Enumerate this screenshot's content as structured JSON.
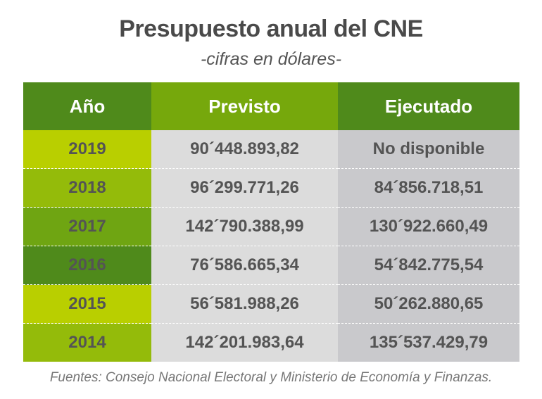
{
  "title": "Presupuesto anual del CNE",
  "subtitle": "-cifras en dólares-",
  "source": "Fuentes: Consejo Nacional Electoral y Ministerio de Economía y Finanzas.",
  "chart_data": {
    "type": "table",
    "title": "Presupuesto anual del CNE",
    "subtitle": "-cifras en dólares-",
    "columns": [
      "Año",
      "Previsto",
      "Ejecutado"
    ],
    "rows": [
      {
        "year": "2019",
        "previsto": "90´448.893,82",
        "ejecutado": "No disponible",
        "color": "#b9cf00"
      },
      {
        "year": "2018",
        "previsto": "96´299.771,26",
        "ejecutado": "84´856.718,51",
        "color": "#94bb0a"
      },
      {
        "year": "2017",
        "previsto": "142´790.388,99",
        "ejecutado": "130´922.660,49",
        "color": "#6fa512"
      },
      {
        "year": "2016",
        "previsto": "76´586.665,34",
        "ejecutado": "54´842.775,54",
        "color": "#4f8a1b"
      },
      {
        "year": "2015",
        "previsto": "56´581.988,26",
        "ejecutado": "50´262.880,65",
        "color": "#b9cf00"
      },
      {
        "year": "2014",
        "previsto": "142´201.983,64",
        "ejecutado": "135´537.429,79",
        "color": "#94bb0a"
      }
    ]
  }
}
